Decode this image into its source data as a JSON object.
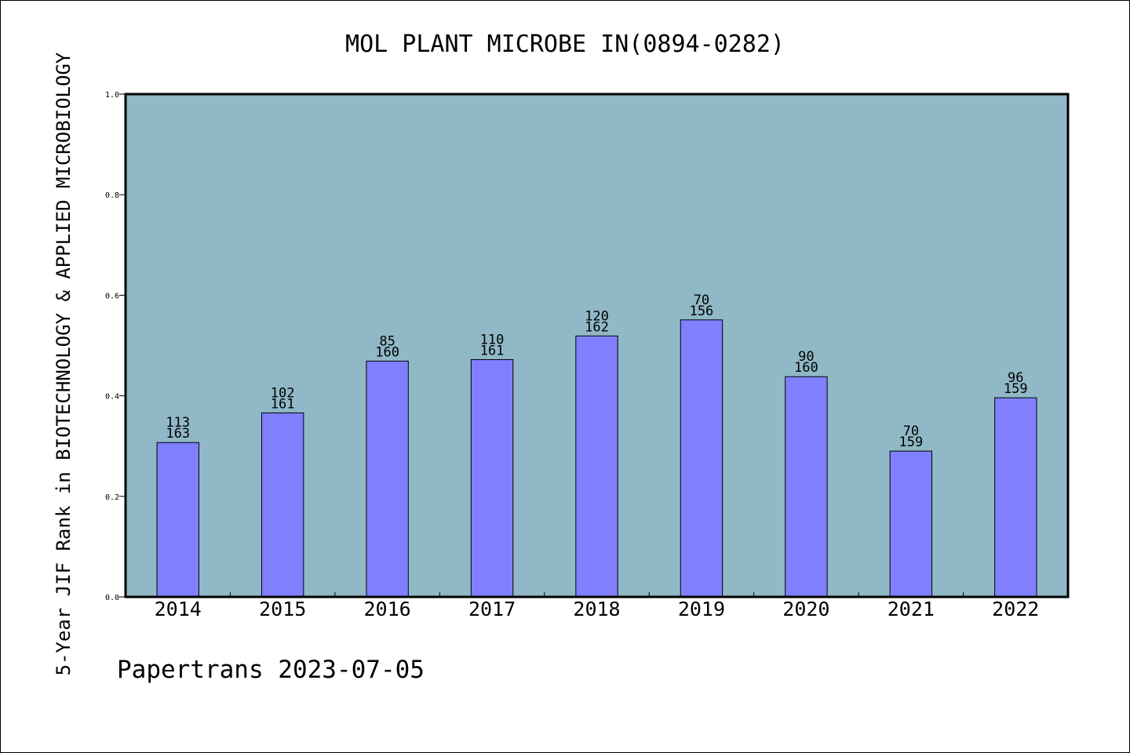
{
  "chart_data": {
    "type": "bar",
    "title": "MOL PLANT MICROBE IN(0894-0282)",
    "ylabel": "5-Year JIF Rank in BIOTECHNOLOGY & APPLIED MICROBIOLOGY",
    "xlabel": "",
    "categories": [
      "2014",
      "2015",
      "2016",
      "2017",
      "2018",
      "2019",
      "2020",
      "2021",
      "2022"
    ],
    "values": [
      0.307,
      0.366,
      0.469,
      0.472,
      0.519,
      0.551,
      0.438,
      0.29,
      0.396
    ],
    "rank": [
      "113",
      "102",
      "85",
      "110",
      "120",
      "70",
      "90",
      "70",
      "96"
    ],
    "total": [
      "163",
      "161",
      "160",
      "161",
      "162",
      "156",
      "160",
      "159",
      "159"
    ],
    "ylim": [
      0,
      1.0
    ],
    "yticks": [
      "0.0",
      "0.2",
      "0.4",
      "0.6",
      "0.8",
      "1.0"
    ],
    "grid": false,
    "legend": "none",
    "colors": {
      "plot_background": "#90b8c6",
      "bar_fill": "#8080ff",
      "bar_stroke": "#000000"
    }
  },
  "footer": {
    "text": "Papertrans 2023-07-05"
  }
}
